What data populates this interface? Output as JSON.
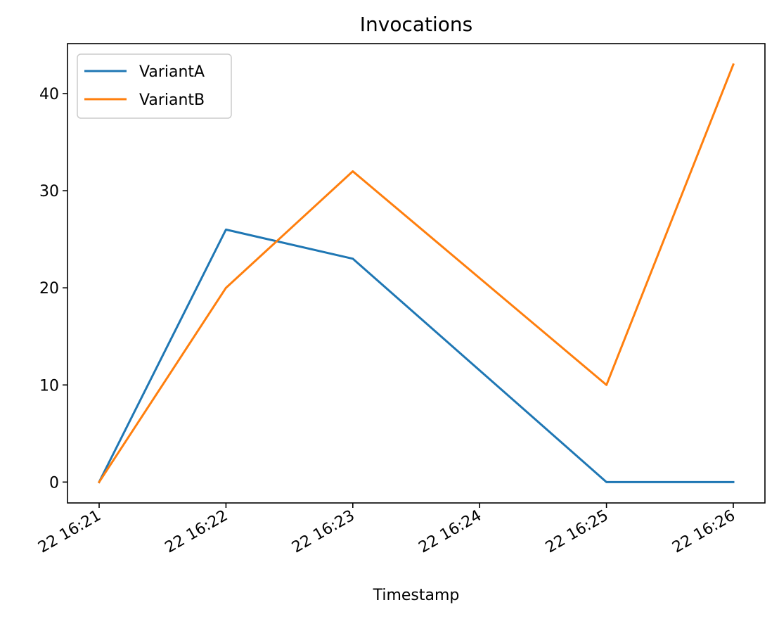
{
  "chart_data": {
    "type": "line",
    "title": "Invocations",
    "xlabel": "Timestamp",
    "ylabel": "",
    "x": [
      "22 16:21",
      "22 16:22",
      "22 16:23",
      "22 16:24",
      "22 16:25",
      "22 16:26"
    ],
    "x_ticks": [
      "22 16:21",
      "22 16:22",
      "22 16:23",
      "22 16:24",
      "22 16:25",
      "22 16:26"
    ],
    "y_ticks": [
      0,
      10,
      20,
      30,
      40
    ],
    "ylim": [
      -2.15,
      45.15
    ],
    "grid": false,
    "legend_position": "top-left",
    "series": [
      {
        "name": "VariantA",
        "color": "#1f77b4",
        "points": [
          {
            "x": "22 16:21",
            "y": 0
          },
          {
            "x": "22 16:22",
            "y": 26
          },
          {
            "x": "22 16:23",
            "y": 23
          },
          {
            "x": "22 16:25",
            "y": 0
          },
          {
            "x": "22 16:26",
            "y": 0
          }
        ]
      },
      {
        "name": "VariantB",
        "color": "#ff7f0e",
        "points": [
          {
            "x": "22 16:21",
            "y": 0
          },
          {
            "x": "22 16:22",
            "y": 20
          },
          {
            "x": "22 16:23",
            "y": 32
          },
          {
            "x": "22 16:25",
            "y": 10
          },
          {
            "x": "22 16:26",
            "y": 43
          }
        ]
      }
    ]
  }
}
